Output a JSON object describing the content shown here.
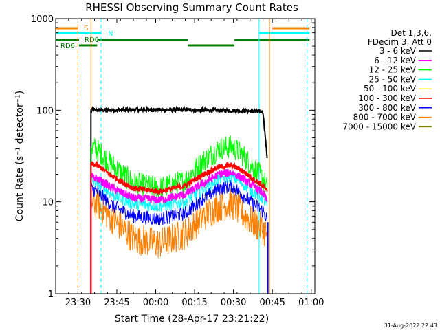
{
  "chart_data": {
    "type": "line",
    "title": "RHESSI Observing Summary Count Rates",
    "xlabel": "Start Time (28-Apr-17 23:21:22)",
    "ylabel": "Count Rate (s⁻¹ detector⁻¹)",
    "x_axis": {
      "unit": "minutes since 23:21:22",
      "range": [
        0,
        100
      ],
      "ticks": [
        {
          "label": "23:30",
          "value": 8.6
        },
        {
          "label": "23:45",
          "value": 23.6
        },
        {
          "label": "00:00",
          "value": 38.6
        },
        {
          "label": "00:15",
          "value": 53.6
        },
        {
          "label": "00:30",
          "value": 68.6
        },
        {
          "label": "00:45",
          "value": 83.6
        },
        {
          "label": "01:00",
          "value": 98.6
        }
      ]
    },
    "y_axis": {
      "scale": "log",
      "range": [
        1,
        1000
      ],
      "ticks": [
        {
          "label": "1",
          "value": 1
        },
        {
          "label": "10",
          "value": 10
        },
        {
          "label": "100",
          "value": 100
        },
        {
          "label": "1000",
          "value": 1000
        }
      ]
    },
    "legend": {
      "placement": "right",
      "header": [
        "Det 1,3,6,",
        "FDecim 3, Att 0"
      ],
      "entries": [
        {
          "label": "3 - 6 keV",
          "color": "#000000"
        },
        {
          "label": "6 - 12 keV",
          "color": "#ff00ff"
        },
        {
          "label": "12 - 25 keV",
          "color": "#00ff00"
        },
        {
          "label": "25 - 50 keV",
          "color": "#00ffff"
        },
        {
          "label": "50 - 100 keV",
          "color": "#ffff00"
        },
        {
          "label": "100 - 300 keV",
          "color": "#ff0000"
        },
        {
          "label": "300 - 800 keV",
          "color": "#0000ff"
        },
        {
          "label": "800 - 7000 keV",
          "color": "#ff8000"
        },
        {
          "label": "7000 - 15000 keV",
          "color": "#808000"
        }
      ]
    },
    "data_window": {
      "start": 13.6,
      "end": 81.6
    },
    "series": [
      {
        "band": "3 - 6 keV",
        "color": "#000000",
        "noise": 0.05,
        "x": [
          13.6,
          30,
          50,
          70,
          80,
          81.6
        ],
        "y": [
          100,
          101,
          101,
          99,
          96,
          30
        ]
      },
      {
        "band": "12 - 25 keV",
        "color": "#00ff00",
        "noise": 0.3,
        "x": [
          13.6,
          16,
          22,
          30,
          40,
          50,
          57,
          63,
          68,
          72,
          76,
          80,
          81.6
        ],
        "y": [
          40,
          37,
          25,
          16,
          14,
          17,
          28,
          38,
          40,
          33,
          24,
          18,
          14
        ]
      },
      {
        "band": "800 - 7000 keV",
        "color": "#ff8000",
        "noise": 0.4,
        "x": [
          13.6,
          16,
          22,
          30,
          40,
          50,
          57,
          63,
          68,
          72,
          76,
          80,
          81.6
        ],
        "y": [
          10,
          9.5,
          6.5,
          4,
          3.5,
          4.5,
          7,
          9,
          9.5,
          7.5,
          6,
          5,
          4.3
        ]
      },
      {
        "band": "300 - 800 keV",
        "color": "#0000ff",
        "noise": 0.18,
        "x": [
          13.6,
          16,
          22,
          30,
          40,
          50,
          57,
          63,
          68,
          72,
          76,
          80,
          81.6
        ],
        "y": [
          14,
          13,
          9,
          7,
          6.5,
          7.5,
          11,
          14,
          15,
          12,
          9.5,
          8,
          6.5
        ]
      },
      {
        "band": "25 - 50 keV",
        "color": "#00ffff",
        "noise": 0.16,
        "x": [
          13.6,
          16,
          22,
          30,
          40,
          50,
          57,
          63,
          68,
          72,
          76,
          80,
          81.6
        ],
        "y": [
          17,
          16,
          12,
          9.5,
          9,
          10,
          14,
          18,
          19,
          16,
          13,
          11,
          9
        ]
      },
      {
        "band": "6 - 12 keV",
        "color": "#ff00ff",
        "noise": 0.1,
        "x": [
          13.6,
          16,
          22,
          30,
          40,
          50,
          57,
          63,
          68,
          72,
          76,
          80,
          81.6
        ],
        "y": [
          19,
          18,
          14,
          11,
          10.5,
          12,
          16,
          20,
          21,
          18,
          15,
          12.5,
          10
        ]
      },
      {
        "band": "100 - 300 keV",
        "color": "#ff0000",
        "noise": 0.07,
        "x": [
          13.6,
          16,
          22,
          30,
          40,
          50,
          57,
          63,
          68,
          72,
          76,
          80,
          81.6
        ],
        "y": [
          26,
          25,
          19,
          14,
          13,
          15,
          20,
          24,
          25,
          22,
          18,
          15,
          13
        ]
      }
    ],
    "flag_bars": [
      {
        "label": "S",
        "color": "#ff8000",
        "segments": [
          [
            0,
            8.6
          ],
          [
            83.6,
            98
          ]
        ]
      },
      {
        "label": "N",
        "color": "#00ffff",
        "segments": [
          [
            0,
            17.5
          ],
          [
            78.5,
            98
          ]
        ]
      },
      {
        "label": "RD0",
        "color": "#008000",
        "segments": [
          [
            0,
            9
          ],
          [
            16,
            51
          ],
          [
            69,
            98
          ]
        ]
      },
      {
        "label": "RD6",
        "color": "#008000",
        "segments": [
          [
            9,
            16
          ],
          [
            51,
            69
          ]
        ]
      }
    ],
    "vertical_markers": [
      {
        "x": 0,
        "color": "#00ffff",
        "style": "solid"
      },
      {
        "x": 8.6,
        "color": "#ff8000",
        "style": "dashed"
      },
      {
        "x": 13.6,
        "color": "#ff8000",
        "style": "solid"
      },
      {
        "x": 17.5,
        "color": "#00ffff",
        "style": "dashed"
      },
      {
        "x": 78.5,
        "color": "#00ffff",
        "style": "solid"
      },
      {
        "x": 82.5,
        "color": "#ff8000",
        "style": "solid"
      },
      {
        "x": 97,
        "color": "#00ffff",
        "style": "dashed"
      }
    ],
    "footer_timestamp": "31-Aug-2022 22:43"
  }
}
